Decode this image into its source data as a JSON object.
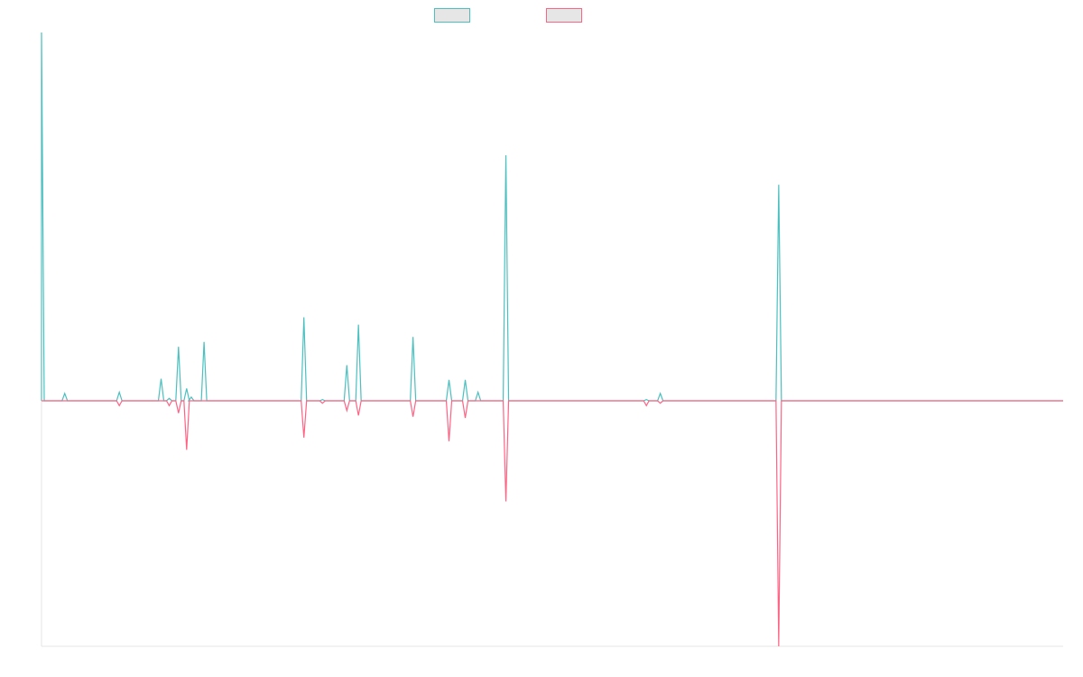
{
  "chart_data": {
    "type": "line",
    "title": "",
    "xlabel": "",
    "ylabel": "",
    "x_range": [
      0,
      88
    ],
    "ylim": [
      -1.0,
      1.5
    ],
    "grid": false,
    "legend": "top-center",
    "series": [
      {
        "color": "#4bc0c0",
        "fill": "#e6e6e6",
        "direction": "up",
        "points": [
          [
            0,
            1.5
          ],
          [
            2,
            0.03
          ],
          [
            6.7,
            0.035
          ],
          [
            10.3,
            0.09
          ],
          [
            11,
            0.01
          ],
          [
            11.8,
            0.22
          ],
          [
            12.5,
            0.05
          ],
          [
            12.9,
            0.015
          ],
          [
            14,
            0.24
          ],
          [
            22.6,
            0.34
          ],
          [
            24.2,
            0.005
          ],
          [
            26.3,
            0.145
          ],
          [
            27.3,
            0.31
          ],
          [
            32,
            0.26
          ],
          [
            35.1,
            0.085
          ],
          [
            36.5,
            0.085
          ],
          [
            37.6,
            0.035
          ],
          [
            40,
            1.0
          ],
          [
            52.1,
            0.005
          ],
          [
            53.3,
            0.03
          ],
          [
            63.5,
            0.88
          ]
        ]
      },
      {
        "color": "#ff6384",
        "fill": "#e6e6e6",
        "direction": "down",
        "points": [
          [
            6.7,
            -0.02
          ],
          [
            11,
            -0.02
          ],
          [
            11.8,
            -0.05
          ],
          [
            12.5,
            -0.2
          ],
          [
            22.6,
            -0.15
          ],
          [
            24.2,
            -0.01
          ],
          [
            26.3,
            -0.04
          ],
          [
            27.3,
            -0.06
          ],
          [
            32,
            -0.065
          ],
          [
            35.1,
            -0.165
          ],
          [
            36.5,
            -0.07
          ],
          [
            40,
            -0.41
          ],
          [
            52.1,
            -0.02
          ],
          [
            53.3,
            -0.01
          ],
          [
            63.5,
            -1.0
          ]
        ]
      }
    ]
  }
}
